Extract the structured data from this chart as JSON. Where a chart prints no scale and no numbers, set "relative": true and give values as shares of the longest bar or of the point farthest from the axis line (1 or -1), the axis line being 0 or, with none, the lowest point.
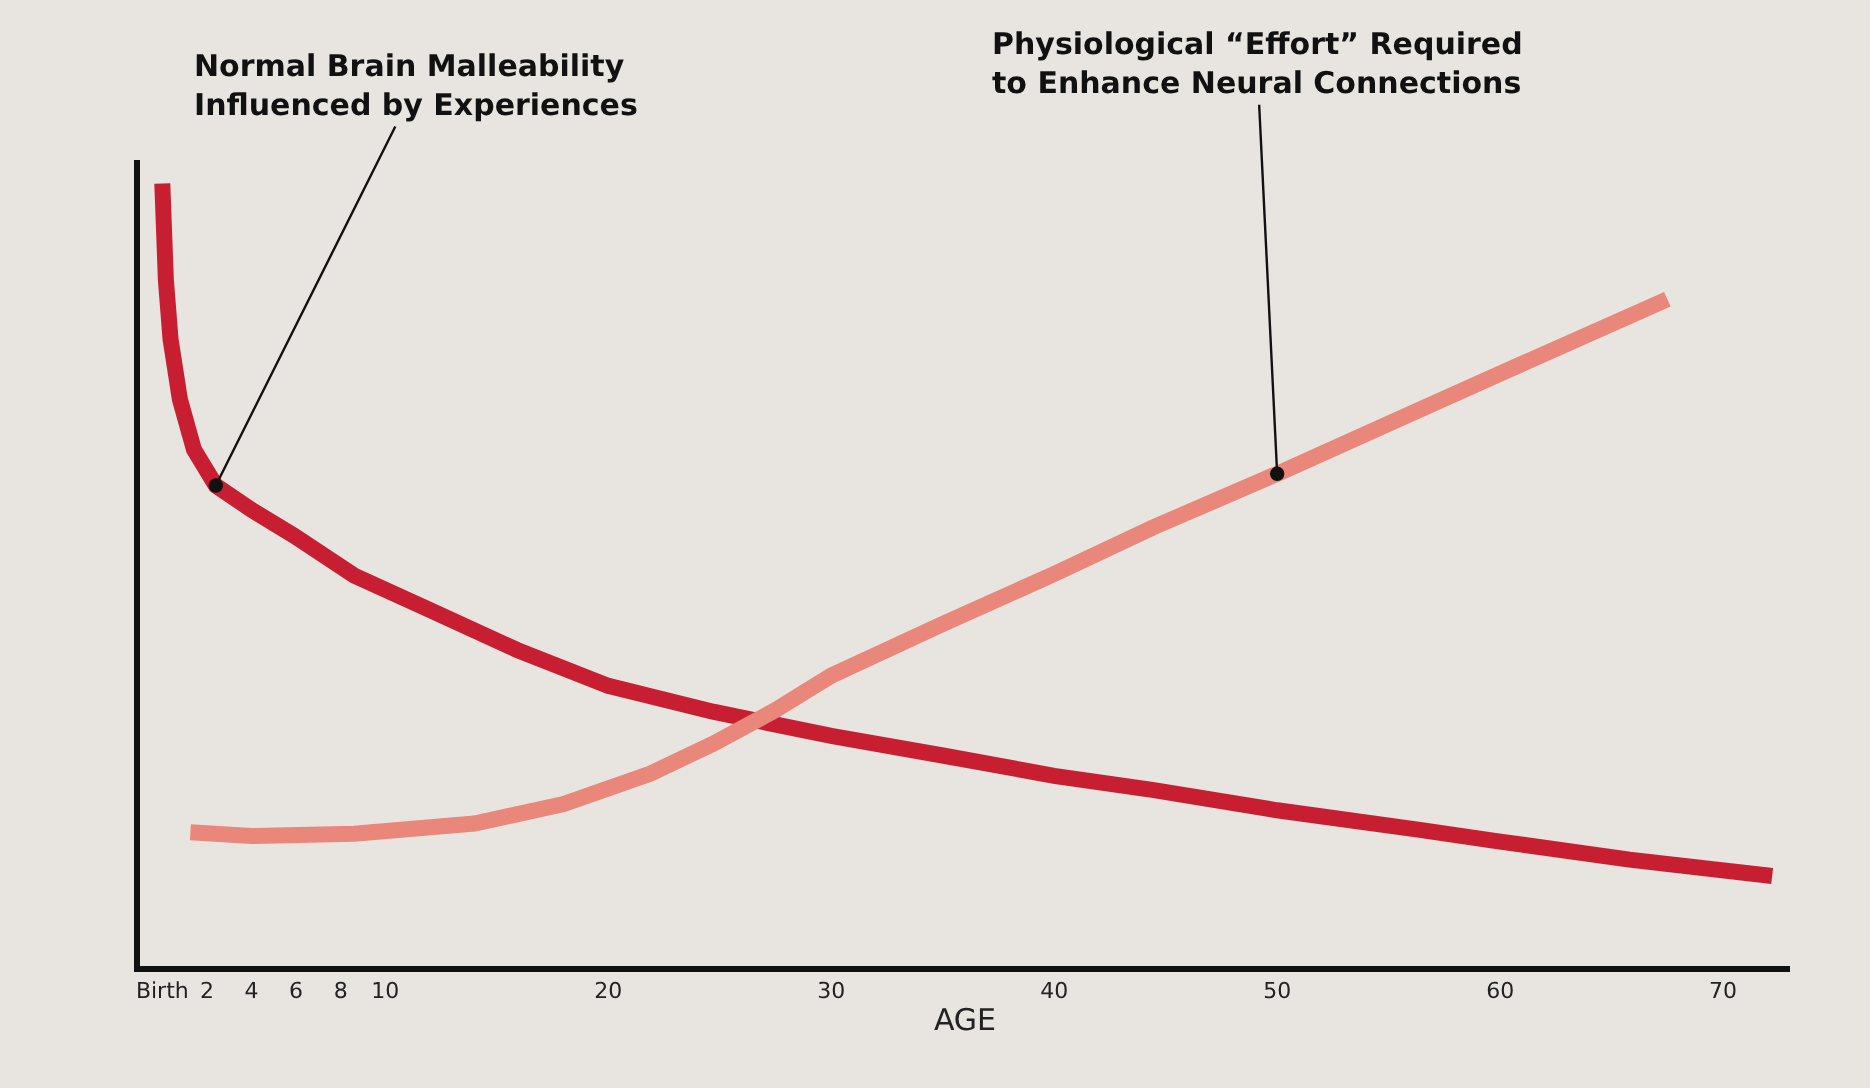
{
  "chart_data": {
    "type": "line",
    "relative": true,
    "xlabel": "AGE",
    "xlim": [
      -1,
      73
    ],
    "xticks": [
      {
        "value": 0,
        "label": "Birth"
      },
      2,
      4,
      6,
      8,
      10,
      20,
      30,
      40,
      50,
      60,
      70
    ],
    "tick_labels": "x",
    "grid": false,
    "marker": "none",
    "line_style": "solid",
    "series": [
      {
        "color": "#c81e32",
        "x": [
          0,
          0.16,
          0.37,
          0.79,
          1.42,
          2.4,
          4,
          5.9,
          8.6,
          12,
          15.9,
          20,
          24.7,
          30,
          35,
          40,
          44.4,
          50,
          56.4,
          60,
          65.8,
          72.2
        ],
        "values": [
          1.0,
          0.877,
          0.801,
          0.724,
          0.66,
          0.614,
          0.583,
          0.55,
          0.499,
          0.455,
          0.404,
          0.358,
          0.325,
          0.294,
          0.269,
          0.243,
          0.225,
          0.199,
          0.174,
          0.159,
          0.136,
          0.115
        ]
      },
      {
        "color": "#e8877a",
        "x": [
          1.26,
          4,
          8.6,
          14,
          18,
          21.9,
          24.7,
          27.5,
          30,
          35,
          40,
          44.4,
          50,
          56.4,
          60,
          67.5
        ],
        "values": [
          0.171,
          0.166,
          0.169,
          0.182,
          0.207,
          0.246,
          0.284,
          0.327,
          0.371,
          0.437,
          0.501,
          0.56,
          0.629,
          0.711,
          0.757,
          0.852
        ]
      }
    ],
    "annotations": [
      {
        "text": "Normal Brain Malleability\nInfluenced by Experiences",
        "x": 2.4,
        "y": 0.614
      },
      {
        "text": "Physiological “Effort” Required\nto Enhance Neural Connections",
        "x": 50,
        "y": 0.629
      }
    ]
  }
}
